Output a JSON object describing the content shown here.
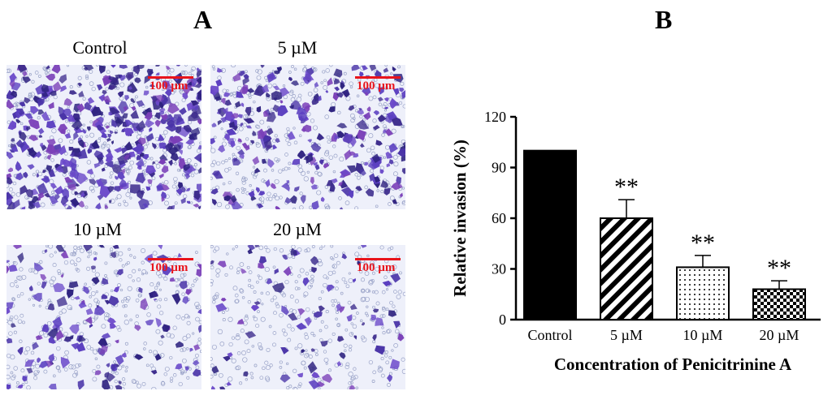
{
  "panel_a": {
    "letter": "A",
    "images": [
      {
        "label": "Control",
        "scale_text": "100 µm",
        "density": 1.0
      },
      {
        "label": "5 µM",
        "scale_text": "100 µm",
        "density": 0.6
      },
      {
        "label": "10 µM",
        "scale_text": "100 µm",
        "density": 0.31
      },
      {
        "label": "20 µM",
        "scale_text": "100 µm",
        "density": 0.18
      }
    ]
  },
  "panel_b": {
    "letter": "B"
  },
  "chart_data": {
    "type": "bar",
    "categories": [
      "Control",
      "5 µM",
      "10 µM",
      "20 µM"
    ],
    "values": [
      100,
      60,
      31,
      18
    ],
    "errors": [
      0,
      11,
      7,
      5
    ],
    "significance": [
      "",
      "**",
      "**",
      "**"
    ],
    "patterns": [
      "solid",
      "diagonal-stripes",
      "dots",
      "checkerboard"
    ],
    "xlabel": "Concentration of Penicitrinine A",
    "ylabel": "Relative invasion (%)",
    "ylim": [
      0,
      120
    ],
    "yticks": [
      0,
      30,
      60,
      90,
      120
    ],
    "grid": false
  },
  "colors": {
    "cells_dark": "#3b2a8c",
    "cells_mid": "#6a48c9",
    "background": "#eef0fa",
    "scale_bar": "#e8141b"
  }
}
